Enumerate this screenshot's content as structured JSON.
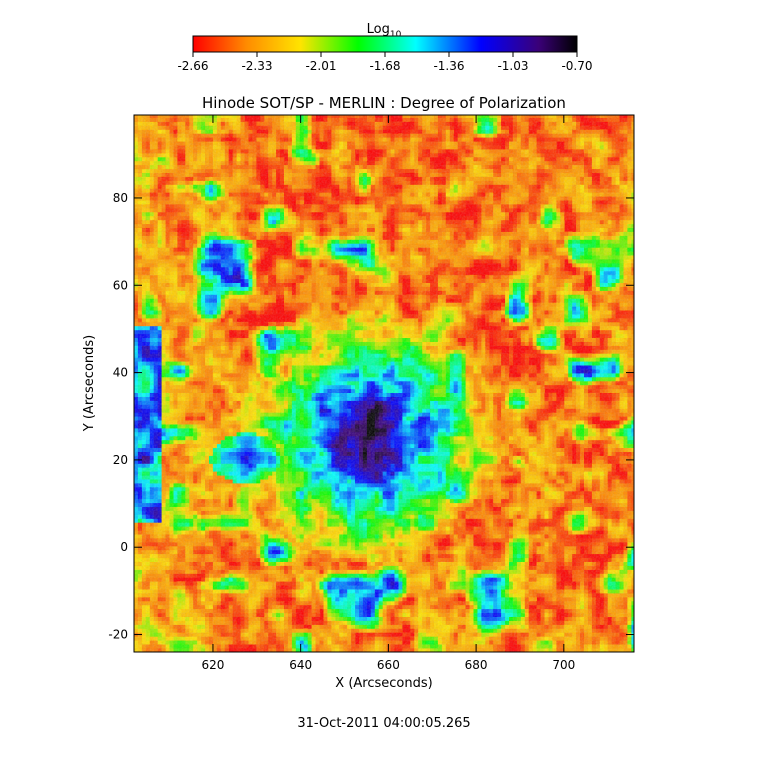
{
  "chart_data": {
    "type": "heatmap",
    "title": "Hinode SOT/SP - MERLIN : Degree of Polarization",
    "xlabel": "X (Arcseconds)",
    "ylabel": "Y (Arcseconds)",
    "xlim": [
      602,
      716
    ],
    "ylim": [
      -24,
      99
    ],
    "xticks": [
      620,
      640,
      660,
      680,
      700
    ],
    "yticks": [
      -20,
      0,
      20,
      40,
      60,
      80
    ],
    "grid": false,
    "colorbar": {
      "label_main": "Log",
      "label_sub": "10",
      "position": "top",
      "range": [
        -2.66,
        -0.7
      ],
      "ticks": [
        "-2.66",
        "-2.33",
        "-2.01",
        "-1.68",
        "-1.36",
        "-1.03",
        "-0.70"
      ],
      "colormap": [
        "#ff0000",
        "#ff8c00",
        "#ffe400",
        "#00ff00",
        "#00ffff",
        "#0000ff",
        "#3a0078",
        "#000000"
      ]
    },
    "features": {
      "umbra_center": [
        655,
        25
      ],
      "umbra_radius": 9,
      "penumbra_radius": 18,
      "secondary_umbra_center": [
        627,
        20
      ]
    },
    "timestamp": "31-Oct-2011 04:00:05.265"
  }
}
